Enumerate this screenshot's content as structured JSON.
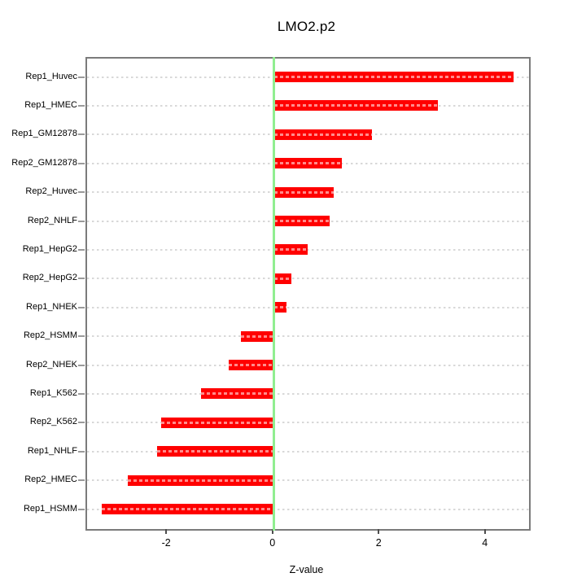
{
  "title": "LMO2.p2",
  "chart_data": {
    "type": "bar",
    "orientation": "horizontal",
    "title": "LMO2.p2",
    "xlabel": "Z-value",
    "categories": [
      "Rep1_Huvec",
      "Rep1_HMEC",
      "Rep1_GM12878",
      "Rep2_GM12878",
      "Rep2_Huvec",
      "Rep2_NHLF",
      "Rep1_HepG2",
      "Rep2_HepG2",
      "Rep1_NHEK",
      "Rep2_HSMM",
      "Rep2_NHEK",
      "Rep1_K562",
      "Rep2_K562",
      "Rep1_NHLF",
      "Rep2_HMEC",
      "Rep1_HSMM"
    ],
    "values": [
      4.51,
      3.08,
      1.84,
      1.28,
      1.12,
      1.05,
      0.63,
      0.32,
      0.23,
      -0.62,
      -0.85,
      -1.38,
      -2.12,
      -2.2,
      -2.75,
      -3.25
    ],
    "xticks": [
      -2,
      0,
      2,
      4
    ],
    "xlim": [
      -3.52,
      4.8
    ],
    "grid": true,
    "legend": "none",
    "bar_color": "#ff0000",
    "zero_line_color": "#90ee90",
    "grid_color": "#d8d8d8",
    "box_color": "#7b7b7b"
  }
}
